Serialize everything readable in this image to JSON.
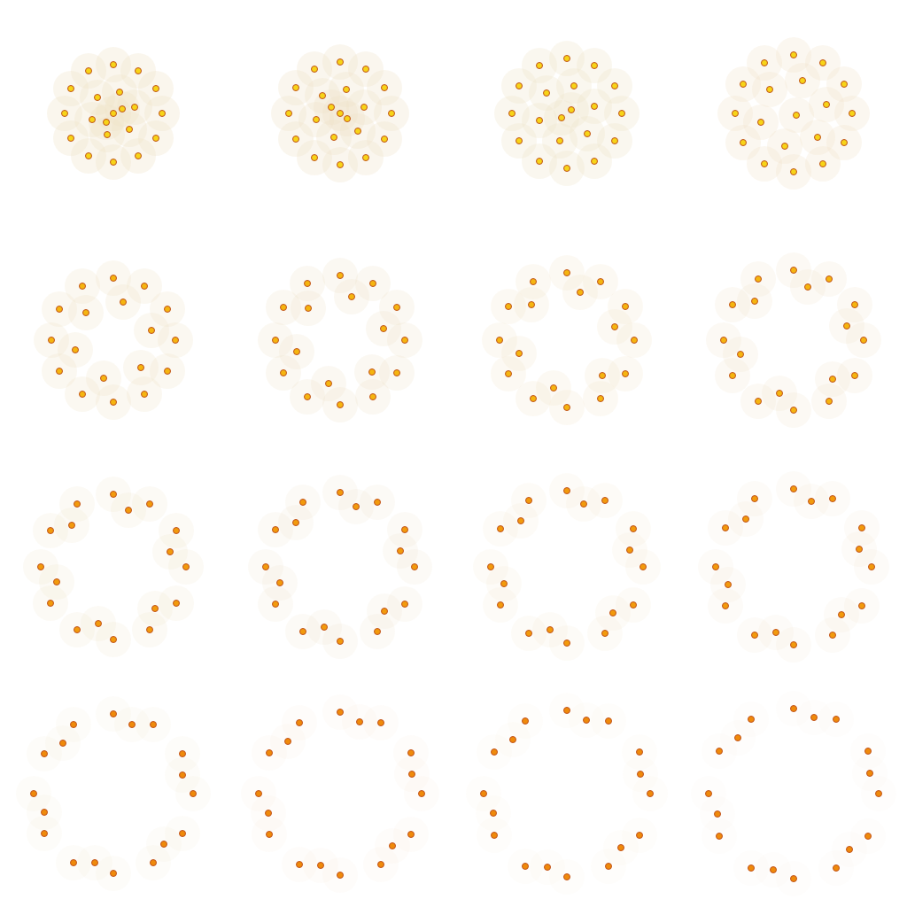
{
  "chart_data": [
    {
      "type": "scatter",
      "xlim": [
        -1.2,
        1.2
      ],
      "ylim": [
        -1.2,
        1.2
      ],
      "tick_labels": false,
      "color": "#f7d417",
      "x": [
        0.55,
        0.48,
        0.28,
        0,
        -0.28,
        -0.48,
        -0.55,
        -0.48,
        -0.28,
        0,
        0.28,
        0.48,
        0.24,
        0.07,
        -0.18,
        -0.24,
        -0.07,
        0.18,
        0,
        0.1,
        -0.08
      ],
      "values": [
        0,
        0.28,
        0.48,
        0.55,
        0.48,
        0.28,
        0,
        -0.28,
        -0.48,
        -0.55,
        -0.48,
        -0.28,
        0.07,
        0.24,
        0.18,
        -0.07,
        -0.24,
        -0.18,
        0,
        0.05,
        -0.1
      ]
    },
    {
      "type": "scatter",
      "xlim": [
        -1.2,
        1.2
      ],
      "ylim": [
        -1.2,
        1.2
      ],
      "tick_labels": false,
      "color": "#f7d417",
      "x": [
        0.58,
        0.5,
        0.29,
        0,
        -0.29,
        -0.5,
        -0.58,
        -0.5,
        -0.29,
        0,
        0.29,
        0.5,
        0.27,
        0.07,
        -0.2,
        -0.27,
        -0.07,
        0.2,
        0,
        0.08,
        -0.1
      ],
      "values": [
        0,
        0.29,
        0.5,
        0.58,
        0.5,
        0.29,
        0,
        -0.29,
        -0.5,
        -0.58,
        -0.5,
        -0.29,
        0.07,
        0.27,
        0.2,
        -0.07,
        -0.27,
        -0.2,
        0,
        -0.06,
        0.07
      ]
    },
    {
      "type": "scatter",
      "xlim": [
        -1.2,
        1.2
      ],
      "ylim": [
        -1.2,
        1.2
      ],
      "tick_labels": false,
      "color": "#f7d417",
      "x": [
        0.62,
        0.54,
        0.31,
        0,
        -0.31,
        -0.54,
        -0.62,
        -0.54,
        -0.31,
        0,
        0.31,
        0.54,
        0.31,
        0.08,
        -0.23,
        -0.31,
        -0.08,
        0.23,
        0.05,
        -0.06
      ],
      "values": [
        0,
        0.31,
        0.54,
        0.62,
        0.54,
        0.31,
        0,
        -0.31,
        -0.54,
        -0.62,
        -0.54,
        -0.31,
        0.08,
        0.31,
        0.23,
        -0.08,
        -0.31,
        -0.23,
        0.04,
        -0.05
      ]
    },
    {
      "type": "scatter",
      "xlim": [
        -1.2,
        1.2
      ],
      "ylim": [
        -1.2,
        1.2
      ],
      "tick_labels": false,
      "color": "#f7d417",
      "x": [
        0.66,
        0.57,
        0.33,
        0,
        -0.33,
        -0.57,
        -0.66,
        -0.57,
        -0.33,
        0,
        0.33,
        0.57,
        0.37,
        0.1,
        -0.27,
        -0.37,
        -0.1,
        0.27,
        0.03
      ],
      "values": [
        0,
        0.33,
        0.57,
        0.66,
        0.57,
        0.33,
        0,
        -0.33,
        -0.57,
        -0.66,
        -0.57,
        -0.33,
        0.1,
        0.37,
        0.27,
        -0.1,
        -0.37,
        -0.27,
        -0.02
      ]
    },
    {
      "type": "scatter",
      "xlim": [
        -1.2,
        1.2
      ],
      "ylim": [
        -1.2,
        1.2
      ],
      "tick_labels": false,
      "color": "#f5b50f",
      "x": [
        0.7,
        0.61,
        0.35,
        0,
        -0.35,
        -0.61,
        -0.7,
        -0.61,
        -0.35,
        0,
        0.35,
        0.61,
        0.43,
        0.11,
        -0.31,
        -0.43,
        -0.11,
        0.31
      ],
      "values": [
        0,
        0.35,
        0.61,
        0.7,
        0.61,
        0.35,
        0,
        -0.35,
        -0.61,
        -0.7,
        -0.61,
        -0.35,
        0.11,
        0.43,
        0.31,
        -0.11,
        -0.43,
        -0.31
      ]
    },
    {
      "type": "scatter",
      "xlim": [
        -1.2,
        1.2
      ],
      "ylim": [
        -1.2,
        1.2
      ],
      "tick_labels": false,
      "color": "#f5b50f",
      "x": [
        0.73,
        0.64,
        0.37,
        0,
        -0.37,
        -0.64,
        -0.73,
        -0.64,
        -0.37,
        0,
        0.37,
        0.64,
        0.49,
        0.13,
        -0.36,
        -0.49,
        -0.13,
        0.36
      ],
      "values": [
        0,
        0.37,
        0.64,
        0.73,
        0.64,
        0.37,
        0,
        -0.37,
        -0.64,
        -0.73,
        -0.64,
        -0.37,
        0.13,
        0.49,
        0.36,
        -0.13,
        -0.49,
        -0.36
      ]
    },
    {
      "type": "scatter",
      "xlim": [
        -1.2,
        1.2
      ],
      "ylim": [
        -1.2,
        1.2
      ],
      "tick_labels": false,
      "color": "#f5b50f",
      "x": [
        0.76,
        0.66,
        0.38,
        0,
        -0.38,
        -0.66,
        -0.76,
        -0.66,
        -0.38,
        0,
        0.38,
        0.66,
        0.54,
        0.15,
        -0.4,
        -0.54,
        -0.15,
        0.4
      ],
      "values": [
        0,
        0.38,
        0.66,
        0.76,
        0.66,
        0.38,
        0,
        -0.38,
        -0.66,
        -0.76,
        -0.66,
        -0.38,
        0.15,
        0.54,
        0.4,
        -0.15,
        -0.54,
        -0.4
      ]
    },
    {
      "type": "scatter",
      "xlim": [
        -1.2,
        1.2
      ],
      "ylim": [
        -1.2,
        1.2
      ],
      "tick_labels": false,
      "color": "#f5b50f",
      "x": [
        0.79,
        0.69,
        0.4,
        0,
        -0.4,
        -0.69,
        -0.79,
        -0.69,
        -0.4,
        0,
        0.4,
        0.69,
        0.6,
        0.16,
        -0.44,
        -0.6,
        -0.16,
        0.44
      ],
      "values": [
        0,
        0.4,
        0.69,
        0.79,
        0.69,
        0.4,
        0,
        -0.4,
        -0.69,
        -0.79,
        -0.69,
        -0.4,
        0.16,
        0.6,
        0.44,
        -0.16,
        -0.6,
        -0.44
      ]
    },
    {
      "type": "scatter",
      "xlim": [
        -1.2,
        1.2
      ],
      "ylim": [
        -1.2,
        1.2
      ],
      "tick_labels": false,
      "color": "#f29a0c",
      "x": [
        0.82,
        0.71,
        0.41,
        0,
        -0.41,
        -0.71,
        -0.82,
        -0.71,
        -0.41,
        0,
        0.41,
        0.71,
        0.64,
        0.17,
        -0.47,
        -0.64,
        -0.17,
        0.47
      ],
      "values": [
        0,
        0.41,
        0.71,
        0.82,
        0.71,
        0.41,
        0,
        -0.41,
        -0.71,
        -0.82,
        -0.71,
        -0.41,
        0.17,
        0.64,
        0.47,
        -0.17,
        -0.64,
        -0.47
      ]
    },
    {
      "type": "scatter",
      "xlim": [
        -1.2,
        1.2
      ],
      "ylim": [
        -1.2,
        1.2
      ],
      "tick_labels": false,
      "color": "#f29a0c",
      "x": [
        0.84,
        0.73,
        0.42,
        0,
        -0.42,
        -0.73,
        -0.84,
        -0.73,
        -0.42,
        0,
        0.42,
        0.73,
        0.68,
        0.18,
        -0.5,
        -0.68,
        -0.18,
        0.5
      ],
      "values": [
        0,
        0.42,
        0.73,
        0.84,
        0.73,
        0.42,
        0,
        -0.42,
        -0.73,
        -0.84,
        -0.73,
        -0.42,
        0.18,
        0.68,
        0.5,
        -0.18,
        -0.68,
        -0.5
      ]
    },
    {
      "type": "scatter",
      "xlim": [
        -1.2,
        1.2
      ],
      "ylim": [
        -1.2,
        1.2
      ],
      "tick_labels": false,
      "color": "#f29a0c",
      "x": [
        0.86,
        0.75,
        0.43,
        0,
        -0.43,
        -0.75,
        -0.86,
        -0.75,
        -0.43,
        0,
        0.43,
        0.75,
        0.71,
        0.19,
        -0.52,
        -0.71,
        -0.19,
        0.52
      ],
      "values": [
        0,
        0.43,
        0.75,
        0.86,
        0.75,
        0.43,
        0,
        -0.43,
        -0.75,
        -0.86,
        -0.75,
        -0.43,
        0.19,
        0.71,
        0.52,
        -0.19,
        -0.71,
        -0.52
      ]
    },
    {
      "type": "scatter",
      "xlim": [
        -1.2,
        1.2
      ],
      "ylim": [
        -1.2,
        1.2
      ],
      "tick_labels": false,
      "color": "#f29a0c",
      "x": [
        0.88,
        0.77,
        0.44,
        0,
        -0.44,
        -0.77,
        -0.88,
        -0.77,
        -0.44,
        0,
        0.44,
        0.77,
        0.74,
        0.2,
        -0.54,
        -0.74,
        -0.2,
        0.54
      ],
      "values": [
        0,
        0.44,
        0.77,
        0.88,
        0.77,
        0.44,
        0,
        -0.44,
        -0.77,
        -0.88,
        -0.77,
        -0.44,
        0.2,
        0.74,
        0.54,
        -0.2,
        -0.74,
        -0.54
      ]
    },
    {
      "type": "scatter",
      "xlim": [
        -1.2,
        1.2
      ],
      "ylim": [
        -1.2,
        1.2
      ],
      "tick_labels": false,
      "color": "#ef8a0a",
      "x": [
        0.9,
        0.78,
        0.45,
        0,
        -0.45,
        -0.78,
        -0.9,
        -0.78,
        -0.45,
        0,
        0.45,
        0.78,
        0.78,
        0.21,
        -0.57,
        -0.78,
        -0.21,
        0.57
      ],
      "values": [
        0,
        0.45,
        0.78,
        0.9,
        0.78,
        0.45,
        0,
        -0.45,
        -0.78,
        -0.9,
        -0.78,
        -0.45,
        0.21,
        0.78,
        0.57,
        -0.21,
        -0.78,
        -0.57
      ]
    },
    {
      "type": "scatter",
      "xlim": [
        -1.2,
        1.2
      ],
      "ylim": [
        -1.2,
        1.2
      ],
      "tick_labels": false,
      "color": "#ef8a0a",
      "x": [
        0.92,
        0.8,
        0.46,
        0,
        -0.46,
        -0.8,
        -0.92,
        -0.8,
        -0.46,
        0,
        0.46,
        0.8,
        0.81,
        0.22,
        -0.59,
        -0.81,
        -0.22,
        0.59
      ],
      "values": [
        0,
        0.46,
        0.8,
        0.92,
        0.8,
        0.46,
        0,
        -0.46,
        -0.8,
        -0.92,
        -0.8,
        -0.46,
        0.22,
        0.81,
        0.59,
        -0.22,
        -0.81,
        -0.59
      ]
    },
    {
      "type": "scatter",
      "xlim": [
        -1.2,
        1.2
      ],
      "ylim": [
        -1.2,
        1.2
      ],
      "tick_labels": false,
      "color": "#ef8a0a",
      "x": [
        0.94,
        0.82,
        0.47,
        0,
        -0.47,
        -0.82,
        -0.94,
        -0.82,
        -0.47,
        0,
        0.47,
        0.82,
        0.83,
        0.22,
        -0.61,
        -0.83,
        -0.22,
        0.61
      ],
      "values": [
        0,
        0.47,
        0.82,
        0.94,
        0.82,
        0.47,
        0,
        -0.47,
        -0.82,
        -0.94,
        -0.82,
        -0.47,
        0.22,
        0.83,
        0.61,
        -0.22,
        -0.83,
        -0.61
      ]
    },
    {
      "type": "scatter",
      "xlim": [
        -1.2,
        1.2
      ],
      "ylim": [
        -1.2,
        1.2
      ],
      "tick_labels": false,
      "color": "#ef8a0a",
      "x": [
        0.96,
        0.84,
        0.48,
        0,
        -0.48,
        -0.84,
        -0.96,
        -0.84,
        -0.48,
        0,
        0.48,
        0.84,
        0.86,
        0.23,
        -0.63,
        -0.86,
        -0.23,
        0.63
      ],
      "values": [
        0,
        0.48,
        0.84,
        0.96,
        0.84,
        0.48,
        0,
        -0.48,
        -0.84,
        -0.96,
        -0.84,
        -0.48,
        0.23,
        0.86,
        0.63,
        -0.23,
        -0.86,
        -0.63
      ]
    }
  ]
}
